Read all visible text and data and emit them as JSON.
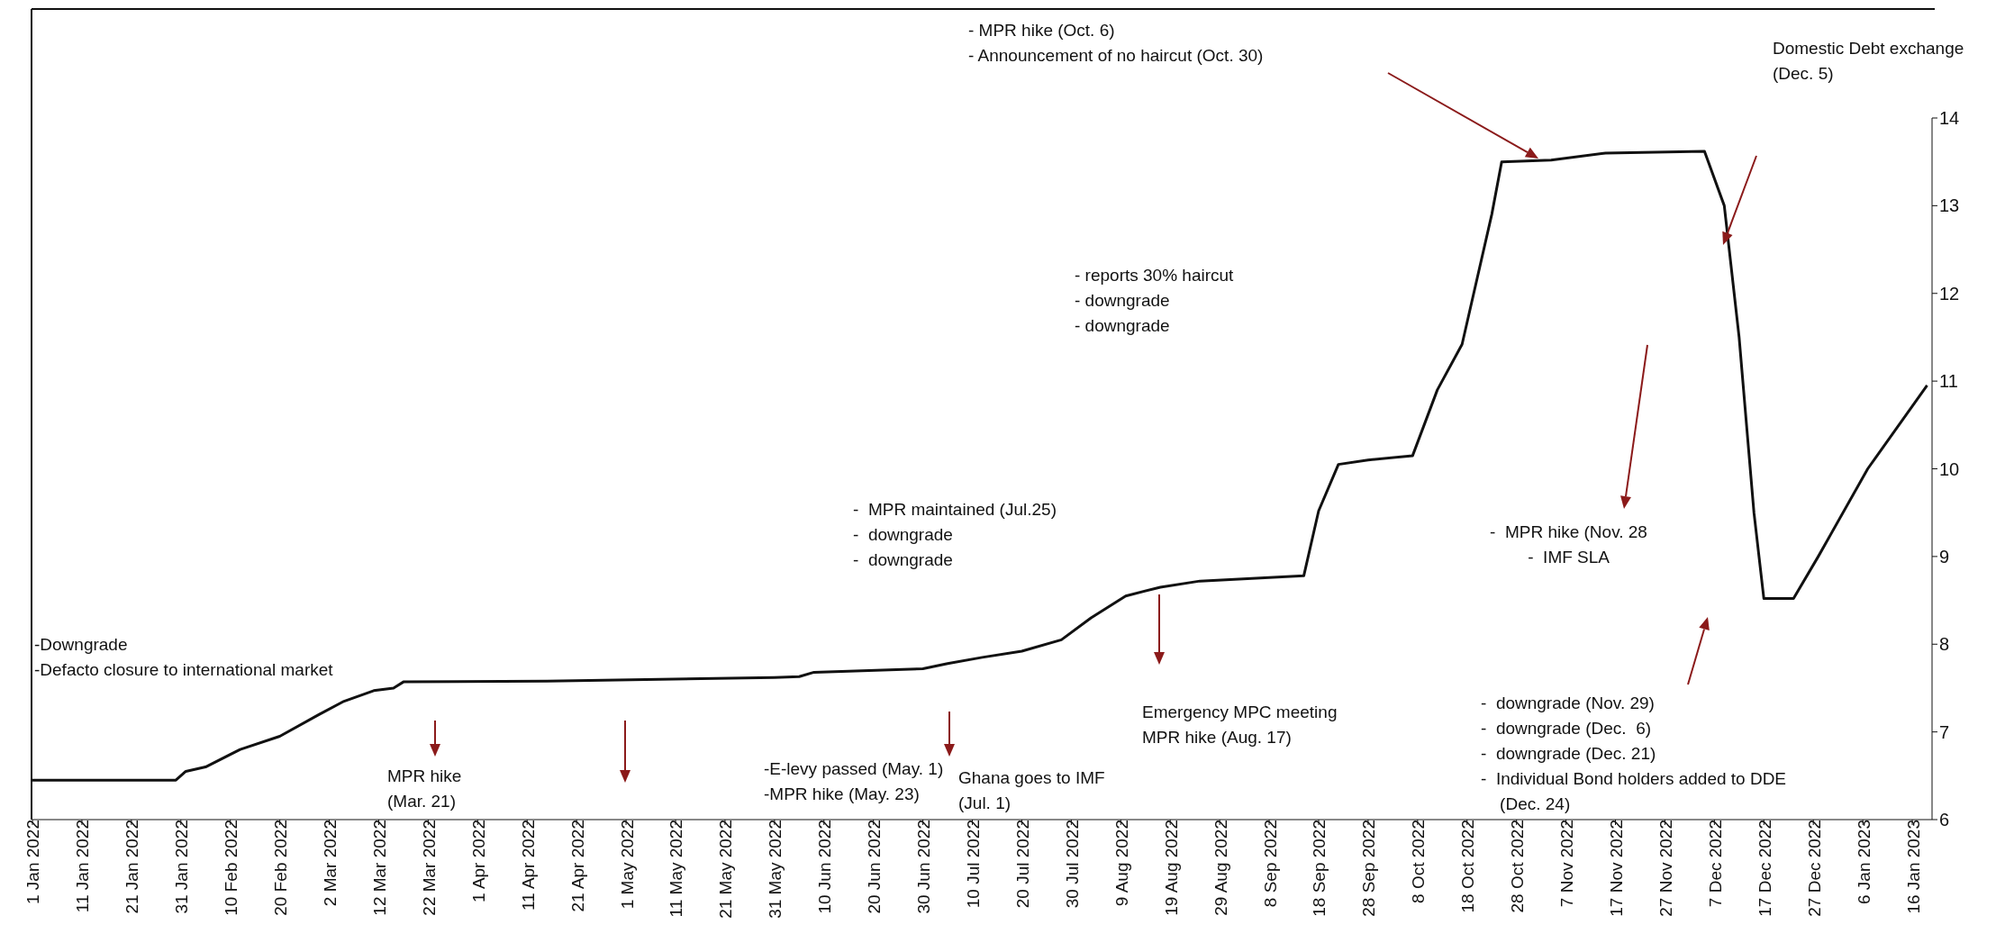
{
  "chart_data": {
    "type": "line",
    "color": "#111111",
    "line_style": "solid",
    "marker": "none",
    "x": [
      "2022-01-01",
      "2022-01-30",
      "2022-02-01",
      "2022-02-05",
      "2022-02-12",
      "2022-02-20",
      "2022-02-28",
      "2022-03-05",
      "2022-03-11",
      "2022-03-15",
      "2022-03-17",
      "2022-04-15",
      "2022-05-31",
      "2022-06-05",
      "2022-06-08",
      "2022-06-30",
      "2022-07-05",
      "2022-07-12",
      "2022-07-20",
      "2022-07-28",
      "2022-08-03",
      "2022-08-10",
      "2022-08-17",
      "2022-08-25",
      "2022-09-15",
      "2022-09-18",
      "2022-09-22",
      "2022-09-28",
      "2022-10-07",
      "2022-10-12",
      "2022-10-17",
      "2022-10-23",
      "2022-10-25",
      "2022-11-04",
      "2022-11-15",
      "2022-12-05",
      "2022-12-09",
      "2022-12-12",
      "2022-12-15",
      "2022-12-17",
      "2022-12-23",
      "2022-12-28",
      "2023-01-07",
      "2023-01-19"
    ],
    "values": [
      6.45,
      6.45,
      6.55,
      6.6,
      6.8,
      6.95,
      7.2,
      7.35,
      7.47,
      7.5,
      7.57,
      7.58,
      7.62,
      7.63,
      7.68,
      7.72,
      7.78,
      7.85,
      7.92,
      8.05,
      8.3,
      8.55,
      8.65,
      8.72,
      8.78,
      9.52,
      10.05,
      10.1,
      10.15,
      10.9,
      11.42,
      12.9,
      13.5,
      13.52,
      13.6,
      13.62,
      13.0,
      11.5,
      9.5,
      8.52,
      8.52,
      9.0,
      10.0,
      10.95
    ],
    "xlim": [
      "2022-01-01",
      "2023-01-20"
    ],
    "xticks": [
      {
        "value": "2022-01-01",
        "label": "1 Jan 2022"
      },
      {
        "value": "2022-01-11",
        "label": "11 Jan 2022"
      },
      {
        "value": "2022-01-21",
        "label": "21 Jan 2022"
      },
      {
        "value": "2022-01-31",
        "label": "31 Jan 2022"
      },
      {
        "value": "2022-02-10",
        "label": "10 Feb 2022"
      },
      {
        "value": "2022-02-20",
        "label": "20 Feb 2022"
      },
      {
        "value": "2022-03-02",
        "label": "2 Mar 2022"
      },
      {
        "value": "2022-03-12",
        "label": "12 Mar 2022"
      },
      {
        "value": "2022-03-22",
        "label": "22 Mar 2022"
      },
      {
        "value": "2022-04-01",
        "label": "1 Apr 2022"
      },
      {
        "value": "2022-04-11",
        "label": "11 Apr 2022"
      },
      {
        "value": "2022-04-21",
        "label": "21 Apr 2022"
      },
      {
        "value": "2022-05-01",
        "label": "1 May 2022"
      },
      {
        "value": "2022-05-11",
        "label": "11 May 2022"
      },
      {
        "value": "2022-05-21",
        "label": "21 May 2022"
      },
      {
        "value": "2022-05-31",
        "label": "31 May 2022"
      },
      {
        "value": "2022-06-10",
        "label": "10 Jun 2022"
      },
      {
        "value": "2022-06-20",
        "label": "20 Jun 2022"
      },
      {
        "value": "2022-06-30",
        "label": "30 Jun 2022"
      },
      {
        "value": "2022-07-10",
        "label": "10 Jul 2022"
      },
      {
        "value": "2022-07-20",
        "label": "20 Jul 2022"
      },
      {
        "value": "2022-07-30",
        "label": "30 Jul 2022"
      },
      {
        "value": "2022-08-09",
        "label": "9 Aug 2022"
      },
      {
        "value": "2022-08-19",
        "label": "19 Aug 2022"
      },
      {
        "value": "2022-08-29",
        "label": "29 Aug 2022"
      },
      {
        "value": "2022-09-08",
        "label": "8 Sep 2022"
      },
      {
        "value": "2022-09-18",
        "label": "18 Sep 2022"
      },
      {
        "value": "2022-09-28",
        "label": "28 Sep 2022"
      },
      {
        "value": "2022-10-08",
        "label": "8 Oct 2022"
      },
      {
        "value": "2022-10-18",
        "label": "18 Oct 2022"
      },
      {
        "value": "2022-10-28",
        "label": "28 Oct 2022"
      },
      {
        "value": "2022-11-07",
        "label": "7 Nov 2022"
      },
      {
        "value": "2022-11-17",
        "label": "17 Nov 2022"
      },
      {
        "value": "2022-11-27",
        "label": "27 Nov 2022"
      },
      {
        "value": "2022-12-07",
        "label": "7 Dec 2022"
      },
      {
        "value": "2022-12-17",
        "label": "17 Dec 2022"
      },
      {
        "value": "2022-12-27",
        "label": "27 Dec 2022"
      },
      {
        "value": "2023-01-06",
        "label": "6 Jan 2023"
      },
      {
        "value": "2023-01-16",
        "label": "16 Jan 2023"
      }
    ],
    "ylim": [
      6,
      14
    ],
    "yticks": [
      6,
      7,
      8,
      9,
      10,
      11,
      12,
      13,
      14
    ],
    "annotations": [
      "-Downgrade\n-Defacto closure to international market",
      "MPR hike\n(Mar. 21)",
      "-E-levy passed (May. 1)\n-MPR hike (May. 23)",
      "Ghana goes to IMF\n(Jul. 1)",
      "-  MPR maintained (Jul.25)\n-  downgrade\n-  downgrade",
      "Emergency MPC meeting\nMPR hike (Aug. 17)",
      "- MPR hike (Oct. 6)\n- Announcement of no haircut (Oct. 30)",
      "- reports 30% haircut\n- downgrade\n- downgrade",
      "Domestic Debt exchange\n(Dec. 5)",
      "-  MPR hike (Nov. 28\n        -  IMF SLA",
      "-  downgrade (Nov. 29)\n-  downgrade (Dec.  6)\n-  downgrade (Dec. 21)\n-  Individual Bond holders added to DDE\n    (Dec. 24)"
    ]
  }
}
